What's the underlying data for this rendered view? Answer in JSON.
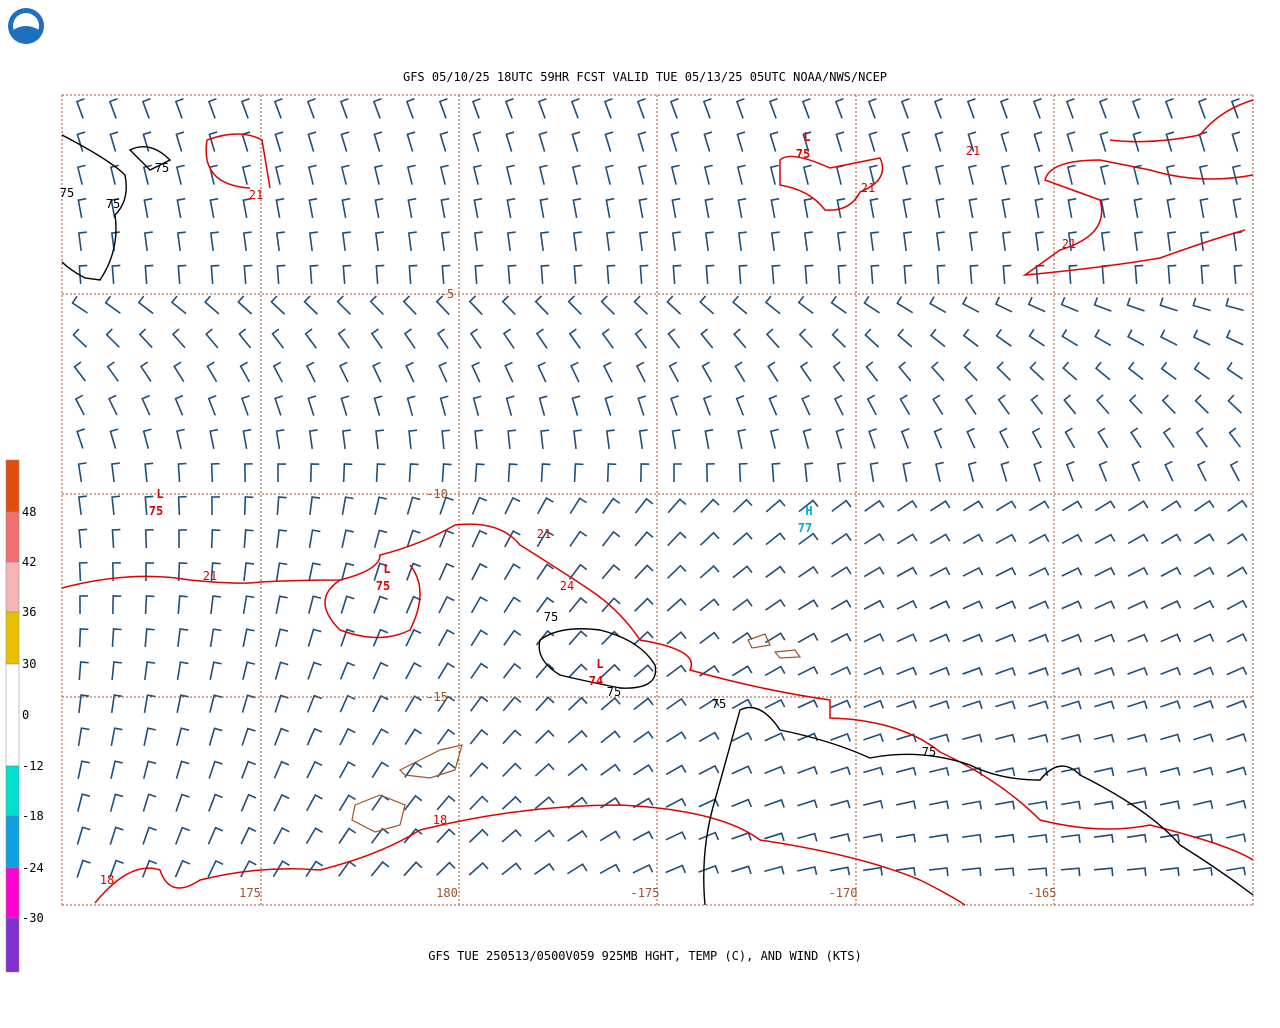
{
  "header": {
    "title": "GFS 05/10/25 18UTC 59HR FCST VALID TUE 05/13/25 05UTC NOAA/NWS/NCEP"
  },
  "footer": {
    "caption": "GFS TUE 250513/0500V059 925MB HGHT, TEMP (C), AND WIND (KTS)"
  },
  "colorbar": {
    "colors": [
      "#e04f10",
      "#f07070",
      "#f4b4b4",
      "#e8c000",
      "#ffffff",
      "#00e0d0",
      "#10a0e0",
      "#ff00d0",
      "#8030d0"
    ],
    "ticks": [
      48,
      42,
      36,
      30,
      0,
      -12,
      -18,
      -24,
      -30
    ]
  },
  "grid_labels": [
    -5,
    -10,
    -15,
    175,
    180,
    -175,
    -170,
    -165
  ],
  "centers": [
    {
      "letter": "L",
      "value": 75
    },
    {
      "letter": "L",
      "value": 75
    },
    {
      "letter": "L",
      "value": 75
    },
    {
      "letter": "L",
      "value": 74
    },
    {
      "letter": "H",
      "value": 77
    }
  ],
  "temp_labels": [
    21,
    21,
    21,
    21,
    21,
    21,
    24,
    18,
    18
  ],
  "height_labels": [
    75,
    75,
    75,
    75,
    75,
    75,
    75
  ]
}
